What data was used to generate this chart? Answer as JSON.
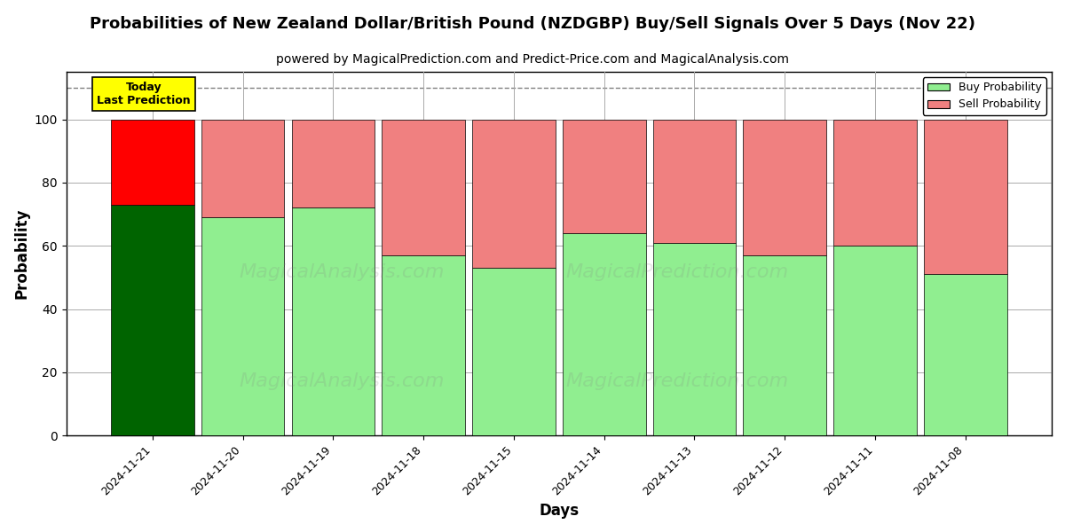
{
  "title": "Probabilities of New Zealand Dollar/British Pound (NZDGBP) Buy/Sell Signals Over 5 Days (Nov 22)",
  "subtitle": "powered by MagicalPrediction.com and Predict-Price.com and MagicalAnalysis.com",
  "xlabel": "Days",
  "ylabel": "Probability",
  "categories": [
    "2024-11-21",
    "2024-11-20",
    "2024-11-19",
    "2024-11-18",
    "2024-11-15",
    "2024-11-14",
    "2024-11-13",
    "2024-11-12",
    "2024-11-11",
    "2024-11-08"
  ],
  "buy_values": [
    73,
    69,
    72,
    57,
    53,
    64,
    61,
    57,
    60,
    51
  ],
  "sell_values": [
    27,
    31,
    28,
    43,
    47,
    36,
    39,
    43,
    40,
    49
  ],
  "buy_colors": [
    "#006400",
    "#90EE90",
    "#90EE90",
    "#90EE90",
    "#90EE90",
    "#90EE90",
    "#90EE90",
    "#90EE90",
    "#90EE90",
    "#90EE90"
  ],
  "sell_colors": [
    "#FF0000",
    "#F08080",
    "#F08080",
    "#F08080",
    "#F08080",
    "#F08080",
    "#F08080",
    "#F08080",
    "#F08080",
    "#F08080"
  ],
  "today_box_color": "#FFFF00",
  "today_text": "Today\nLast Prediction",
  "legend_buy_color": "#90EE90",
  "legend_sell_color": "#F08080",
  "legend_buy_label": "Buy Probability",
  "legend_sell_label": "Sell Probability",
  "ylim": [
    0,
    115
  ],
  "yticks": [
    0,
    20,
    40,
    60,
    80,
    100
  ],
  "dashed_line_y": 110,
  "bar_width": 0.92,
  "background_color": "#ffffff",
  "grid_color": "#aaaaaa",
  "title_fontsize": 13,
  "subtitle_fontsize": 10,
  "bar_edge_color": "#000000",
  "watermark1": "MagicalAnalysis.com",
  "watermark2": "MagicalPrediction.com"
}
